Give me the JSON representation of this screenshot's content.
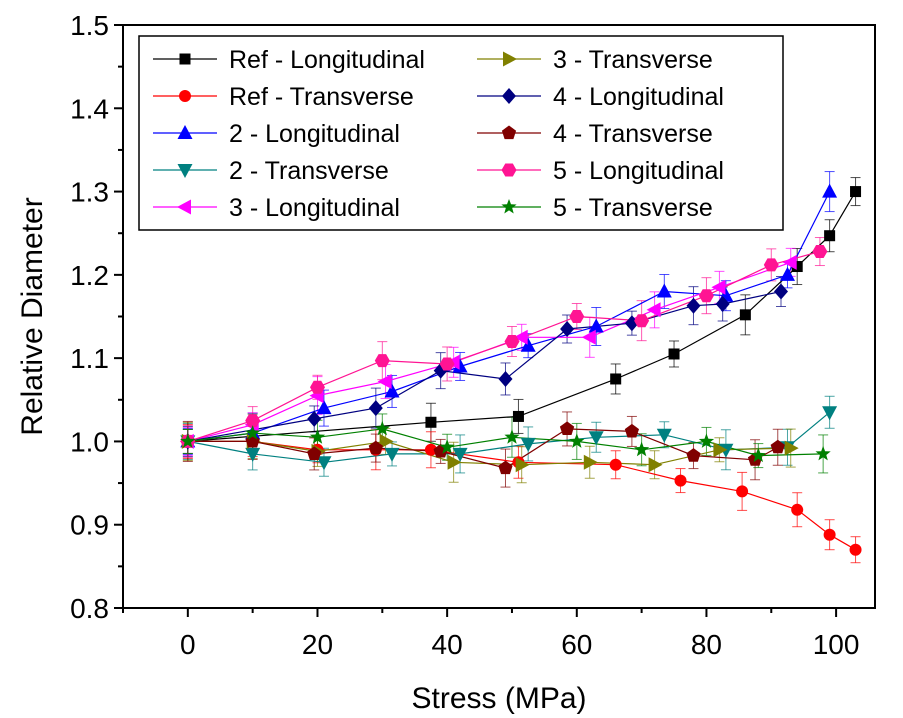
{
  "chart_data": {
    "type": "scatter",
    "title": "",
    "xlabel": "Stress (MPa)",
    "ylabel": "Relative Diameter",
    "xlim": [
      -10,
      106
    ],
    "ylim": [
      0.8,
      1.5
    ],
    "xticks": [
      "0",
      "20",
      "40",
      "60",
      "80",
      "100"
    ],
    "yticks": [
      "0.8",
      "0.9",
      "1.0",
      "1.1",
      "1.2",
      "1.3",
      "1.4",
      "1.5"
    ],
    "grid": false,
    "legend_position": "top-left",
    "series": [
      {
        "name": "Ref - Longitudinal",
        "color": "#000000",
        "marker": "square",
        "x": [
          0,
          37.5,
          51,
          66,
          75,
          86,
          94,
          99,
          103
        ],
        "y": [
          1.0,
          1.023,
          1.03,
          1.075,
          1.105,
          1.152,
          1.21,
          1.247,
          1.3
        ]
      },
      {
        "name": "Ref - Transverse",
        "color": "#ff0000",
        "marker": "circle",
        "x": [
          0,
          10,
          20,
          29,
          37.5,
          51,
          66,
          76,
          85.5,
          94,
          99,
          103
        ],
        "y": [
          1.0,
          1.0,
          0.99,
          0.99,
          0.99,
          0.975,
          0.972,
          0.953,
          0.94,
          0.918,
          0.888,
          0.87
        ]
      },
      {
        "name": "2 - Longitudinal",
        "color": "#0000ff",
        "marker": "triangle-up",
        "x": [
          0,
          10,
          21,
          31.5,
          42,
          52.5,
          63,
          73.5,
          83,
          92.5,
          99
        ],
        "y": [
          1.0,
          1.01,
          1.04,
          1.06,
          1.09,
          1.115,
          1.138,
          1.18,
          1.175,
          1.2,
          1.3
        ]
      },
      {
        "name": "2 - Transverse",
        "color": "#008080",
        "marker": "triangle-down",
        "x": [
          0,
          10,
          21,
          31.5,
          42,
          52.5,
          63,
          73.5,
          83,
          92.5,
          99
        ],
        "y": [
          1.0,
          0.985,
          0.975,
          0.985,
          0.985,
          0.997,
          1.005,
          1.008,
          0.99,
          0.993,
          1.035
        ]
      },
      {
        "name": "3 - Longitudinal",
        "color": "#ff00ff",
        "marker": "triangle-left",
        "x": [
          0,
          10,
          20,
          30.5,
          41,
          51.5,
          62,
          72,
          82,
          93
        ],
        "y": [
          1.0,
          1.02,
          1.055,
          1.072,
          1.095,
          1.125,
          1.125,
          1.158,
          1.185,
          1.215
        ]
      },
      {
        "name": "3 - Transverse",
        "color": "#808000",
        "marker": "triangle-right",
        "x": [
          0,
          10,
          20,
          30.5,
          41,
          51.5,
          62,
          72,
          82,
          93
        ],
        "y": [
          1.0,
          1.0,
          0.988,
          1.0,
          0.975,
          0.972,
          0.975,
          0.972,
          0.99,
          0.992
        ]
      },
      {
        "name": "4 - Longitudinal",
        "color": "#000080",
        "marker": "diamond",
        "x": [
          0,
          19.5,
          29,
          39,
          49,
          58.5,
          68.5,
          78,
          82.5,
          91.5
        ],
        "y": [
          1.0,
          1.027,
          1.04,
          1.085,
          1.075,
          1.135,
          1.142,
          1.163,
          1.165,
          1.18
        ]
      },
      {
        "name": "4 - Transverse",
        "color": "#800000",
        "marker": "pentagon",
        "x": [
          0,
          10,
          19.5,
          29,
          39,
          49,
          58.5,
          68.5,
          78,
          87.5,
          91
        ],
        "y": [
          1.0,
          1.0,
          0.985,
          0.992,
          0.988,
          0.968,
          1.015,
          1.012,
          0.983,
          0.978,
          0.993
        ]
      },
      {
        "name": "5 - Longitudinal",
        "color": "#ff1493",
        "marker": "hexagon",
        "x": [
          0,
          10,
          20,
          30,
          40,
          50,
          60,
          70,
          80,
          90,
          97.5
        ],
        "y": [
          1.0,
          1.025,
          1.065,
          1.097,
          1.093,
          1.12,
          1.15,
          1.145,
          1.175,
          1.212,
          1.228
        ]
      },
      {
        "name": "5 - Transverse",
        "color": "#008000",
        "marker": "star",
        "x": [
          0,
          10,
          20,
          30,
          40,
          50,
          60,
          70,
          80,
          88,
          98
        ],
        "y": [
          1.0,
          1.01,
          1.005,
          1.015,
          0.993,
          1.005,
          1.0,
          0.99,
          1.0,
          0.983,
          0.985
        ]
      }
    ]
  }
}
